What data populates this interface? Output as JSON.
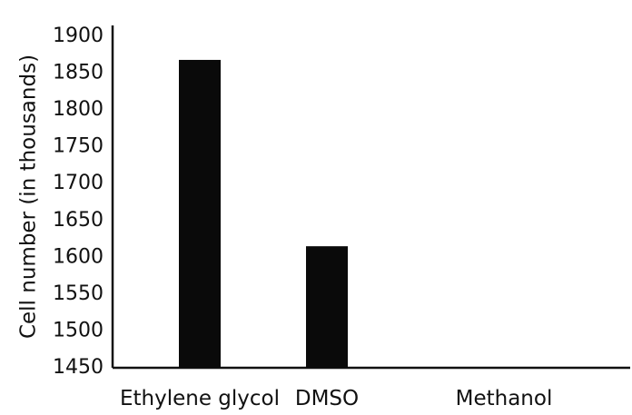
{
  "chart_data": {
    "type": "bar",
    "title": "",
    "xlabel": "",
    "ylabel": "Cell number (in thousands)",
    "categories": [
      "Ethylene glycol",
      "DMSO",
      "Methanol"
    ],
    "values": [
      1868,
      1615,
      1450
    ],
    "ylim": [
      1450,
      1900
    ],
    "yticks": [
      1450,
      1500,
      1550,
      1600,
      1650,
      1700,
      1750,
      1800,
      1850,
      1900
    ],
    "grid": false,
    "legend": "none",
    "colors": {
      "bar": "#0a0a0a",
      "axis": "#111111",
      "background": "#ffffff"
    }
  }
}
